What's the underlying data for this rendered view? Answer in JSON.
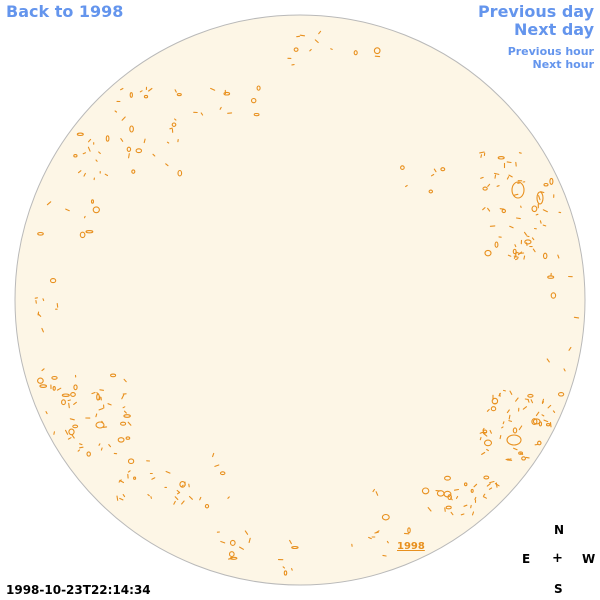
{
  "nav": {
    "back_label": "Back to 1998",
    "prev_day_label": "Previous day",
    "next_day_label": "Next day",
    "prev_hour_label": "Previous hour",
    "next_hour_label": "Next hour"
  },
  "disk": {
    "year_tag": "1998",
    "fill_color": "#fdf6e6",
    "border_color": "#b9b9b9",
    "contour_color": "#e8901e"
  },
  "compass": {
    "north": "N",
    "east": "E",
    "center": "+",
    "west": "W",
    "south": "S"
  },
  "timestamp": "1998-10-23T22:14:34"
}
